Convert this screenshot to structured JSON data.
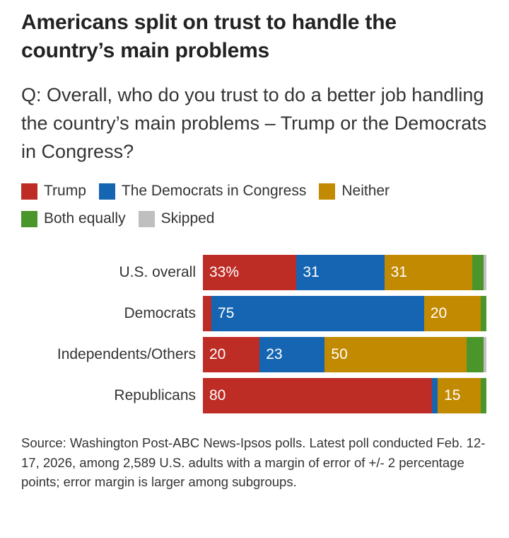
{
  "title": "Americans split on trust to handle the country’s main problems",
  "subtitle": "Q: Overall, who do you trust to do a better job handling the country’s main problems – Trump or the Democrats in Congress?",
  "legend": [
    {
      "key": "trump",
      "label": "Trump",
      "color": "#be2c26"
    },
    {
      "key": "democrats",
      "label": "The Democrats in Congress",
      "color": "#1565b2"
    },
    {
      "key": "neither",
      "label": "Neither",
      "color": "#c28a00"
    },
    {
      "key": "both",
      "label": "Both equally",
      "color": "#4b962b"
    },
    {
      "key": "skipped",
      "label": "Skipped",
      "color": "#bfbfbf"
    }
  ],
  "source": "Source: Washington Post-ABC News-Ipsos polls. Latest poll conducted Feb. 12-17, 2026, among 2,589 U.S. adults with a margin of error of +/- 2 percentage points; error margin is larger among subgroups.",
  "chart_data": {
    "type": "bar",
    "orientation": "horizontal",
    "stacked": true,
    "title": "Americans split on trust to handle the country’s main problems",
    "xlabel": "",
    "ylabel": "",
    "xlim": [
      0,
      100
    ],
    "unit": "%",
    "legend_position": "top",
    "categories": [
      "U.S. overall",
      "Democrats",
      "Independents/Others",
      "Republicans"
    ],
    "series": [
      {
        "name": "Trump",
        "color": "#be2c26",
        "values": [
          33,
          3,
          20,
          80
        ],
        "labels": [
          "33%",
          "",
          "20",
          "80"
        ]
      },
      {
        "name": "The Democrats in Congress",
        "color": "#1565b2",
        "values": [
          31,
          75,
          23,
          2
        ],
        "labels": [
          "31",
          "75",
          "23",
          ""
        ]
      },
      {
        "name": "Neither",
        "color": "#c28a00",
        "values": [
          31,
          20,
          50,
          15
        ],
        "labels": [
          "31",
          "20",
          "50",
          "15"
        ]
      },
      {
        "name": "Both equally",
        "color": "#4b962b",
        "values": [
          4,
          2,
          6,
          2
        ],
        "labels": [
          "",
          "",
          "",
          ""
        ]
      },
      {
        "name": "Skipped",
        "color": "#bfbfbf",
        "values": [
          1,
          0,
          1,
          0
        ],
        "labels": [
          "",
          "",
          "",
          ""
        ]
      }
    ]
  }
}
